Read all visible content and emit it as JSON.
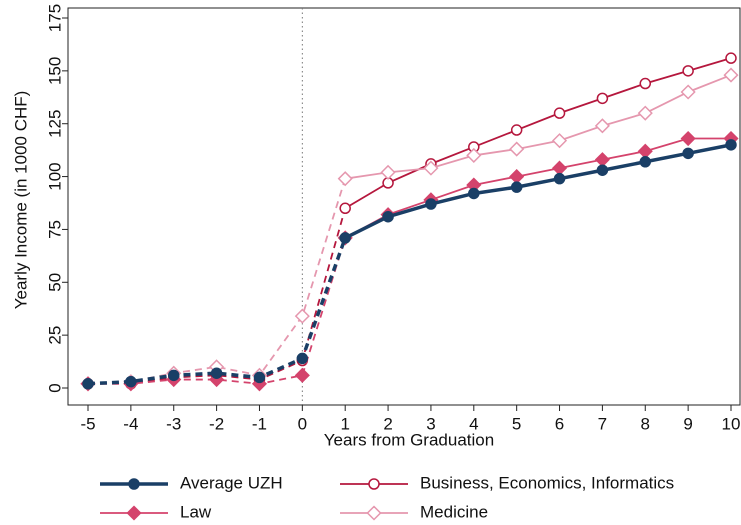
{
  "chart_data": {
    "type": "line",
    "x_label": "Years from Graduation",
    "y_label": "Yearly Income (in 1000 CHF)",
    "x": [
      -5,
      -4,
      -3,
      -2,
      -1,
      0,
      1,
      2,
      3,
      4,
      5,
      6,
      7,
      8,
      9,
      10
    ],
    "xlim": [
      -5,
      10
    ],
    "xticks": [
      -5,
      -4,
      -3,
      -2,
      -1,
      0,
      1,
      2,
      3,
      4,
      5,
      6,
      7,
      8,
      9,
      10
    ],
    "ylim": [
      0,
      175
    ],
    "yticks": [
      0,
      25,
      50,
      75,
      100,
      125,
      150,
      175
    ],
    "vline": 0,
    "series": [
      {
        "name": "Average UZH",
        "color": "#1a3f66",
        "marker": "circle",
        "filled": true,
        "width": 3.5,
        "values": [
          2,
          3,
          6,
          7,
          5,
          14,
          71,
          81,
          87,
          92,
          95,
          99,
          103,
          107,
          111,
          115
        ]
      },
      {
        "name": "Business, Economics, Informatics",
        "color": "#b5173d",
        "marker": "circle",
        "filled": false,
        "width": 1.8,
        "values": [
          2,
          2,
          5,
          6,
          4,
          13,
          85,
          97,
          106,
          114,
          122,
          130,
          137,
          144,
          150,
          156
        ]
      },
      {
        "name": "Law",
        "color": "#d4436c",
        "marker": "diamond",
        "filled": true,
        "width": 1.8,
        "values": [
          2,
          2,
          4,
          4,
          2,
          6,
          71,
          82,
          89,
          96,
          100,
          104,
          108,
          112,
          118,
          118
        ]
      },
      {
        "name": "Medicine",
        "color": "#e597ae",
        "marker": "diamond",
        "filled": false,
        "width": 1.8,
        "values": [
          2,
          3,
          7,
          10,
          6,
          34,
          99,
          102,
          104,
          110,
          113,
          117,
          124,
          130,
          140,
          148
        ]
      }
    ]
  }
}
